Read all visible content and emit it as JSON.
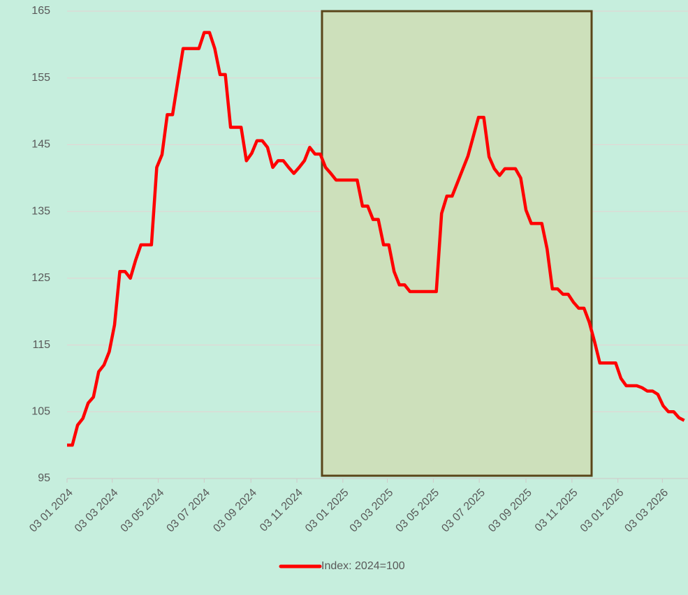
{
  "chart_data": {
    "type": "line",
    "x": [
      "2024-01-03",
      "2024-01-10",
      "2024-01-17",
      "2024-01-24",
      "2024-01-31",
      "2024-02-07",
      "2024-02-14",
      "2024-02-21",
      "2024-02-28",
      "2024-03-06",
      "2024-03-13",
      "2024-03-20",
      "2024-03-27",
      "2024-04-03",
      "2024-04-10",
      "2024-04-17",
      "2024-04-24",
      "2024-05-01",
      "2024-05-08",
      "2024-05-15",
      "2024-05-22",
      "2024-05-29",
      "2024-06-05",
      "2024-06-12",
      "2024-06-19",
      "2024-06-26",
      "2024-07-03",
      "2024-07-10",
      "2024-07-17",
      "2024-07-24",
      "2024-07-31",
      "2024-08-07",
      "2024-08-14",
      "2024-08-21",
      "2024-08-28",
      "2024-09-04",
      "2024-09-11",
      "2024-09-18",
      "2024-09-25",
      "2024-10-02",
      "2024-10-09",
      "2024-10-16",
      "2024-10-23",
      "2024-10-30",
      "2024-11-06",
      "2024-11-13",
      "2024-11-20",
      "2024-11-27",
      "2024-12-04",
      "2024-12-11",
      "2024-12-18",
      "2024-12-25",
      "2025-01-01",
      "2025-01-08",
      "2025-01-15",
      "2025-01-22",
      "2025-01-29",
      "2025-02-05",
      "2025-02-12",
      "2025-02-19",
      "2025-02-26",
      "2025-03-05",
      "2025-03-12",
      "2025-03-19",
      "2025-03-26",
      "2025-04-02",
      "2025-04-09",
      "2025-04-16",
      "2025-04-23",
      "2025-04-30",
      "2025-05-07",
      "2025-05-14",
      "2025-05-21",
      "2025-05-28",
      "2025-06-04",
      "2025-06-11",
      "2025-06-18",
      "2025-06-25",
      "2025-07-02",
      "2025-07-09",
      "2025-07-16",
      "2025-07-23",
      "2025-07-30",
      "2025-08-06",
      "2025-08-13",
      "2025-08-20",
      "2025-08-27",
      "2025-09-03",
      "2025-09-10",
      "2025-09-17",
      "2025-09-24",
      "2025-10-01",
      "2025-10-08",
      "2025-10-15",
      "2025-10-22",
      "2025-10-29",
      "2025-11-05",
      "2025-11-12",
      "2025-11-19",
      "2025-11-26",
      "2025-12-03",
      "2025-12-10",
      "2025-12-17",
      "2025-12-24",
      "2025-12-31",
      "2026-01-07",
      "2026-01-14",
      "2026-01-21",
      "2026-01-28",
      "2026-02-04",
      "2026-02-11",
      "2026-02-18",
      "2026-02-25",
      "2026-03-04",
      "2026-03-11",
      "2026-03-18",
      "2026-03-25",
      "2026-04-01"
    ],
    "series": [
      {
        "name": "Index: 2024=100",
        "color": "#ff0000",
        "values": [
          100,
          100,
          103,
          104,
          106.3,
          107.2,
          111,
          112,
          114,
          118,
          126,
          126,
          125,
          127.7,
          130,
          130,
          130,
          141.6,
          143.5,
          149.5,
          149.5,
          154.5,
          159.4,
          159.4,
          159.4,
          159.4,
          161.8,
          161.8,
          159.4,
          155.5,
          155.5,
          147.6,
          147.6,
          147.6,
          142.6,
          143.7,
          145.6,
          145.6,
          144.6,
          141.6,
          142.6,
          142.6,
          141.6,
          140.7,
          141.6,
          142.6,
          144.6,
          143.6,
          143.6,
          141.6,
          140.7,
          139.7,
          139.7,
          139.7,
          139.7,
          139.7,
          135.8,
          135.8,
          133.8,
          133.8,
          130,
          130,
          126,
          124,
          124,
          123,
          123,
          123,
          123,
          123,
          123,
          134.7,
          137.3,
          137.3,
          139.3,
          141.3,
          143.3,
          146.2,
          149.1,
          149.1,
          143.2,
          141.4,
          140.4,
          141.4,
          141.4,
          141.4,
          140,
          135.2,
          133.2,
          133.2,
          133.2,
          129.4,
          123.4,
          123.4,
          122.6,
          122.6,
          121.4,
          120.5,
          120.5,
          118.4,
          115.5,
          112.3,
          112.3,
          112.3,
          112.3,
          110,
          108.9,
          108.9,
          108.9,
          108.6,
          108.1,
          108.1,
          107.6,
          105.9,
          105,
          105,
          104.1,
          103.7
        ]
      }
    ],
    "xlim": [
      "2024-01-03",
      "2026-04-06"
    ],
    "xticks": [
      {
        "value": "2024-01-03",
        "label": "03 01 2024"
      },
      {
        "value": "2024-03-03",
        "label": "03 03 2024"
      },
      {
        "value": "2024-05-03",
        "label": "03 05 2024"
      },
      {
        "value": "2024-07-03",
        "label": "03 07 2024"
      },
      {
        "value": "2024-09-03",
        "label": "03 09 2024"
      },
      {
        "value": "2024-11-03",
        "label": "03 11 2024"
      },
      {
        "value": "2025-01-03",
        "label": "03 01 2025"
      },
      {
        "value": "2025-03-03",
        "label": "03 03 2025"
      },
      {
        "value": "2025-05-03",
        "label": "03 05 2025"
      },
      {
        "value": "2025-07-03",
        "label": "03 07 2025"
      },
      {
        "value": "2025-09-03",
        "label": "03 09 2025"
      },
      {
        "value": "2025-11-03",
        "label": "03 11 2025"
      },
      {
        "value": "2026-01-03",
        "label": "03 01 2026"
      },
      {
        "value": "2026-03-03",
        "label": "03 03 2026"
      }
    ],
    "ylim": [
      95,
      165
    ],
    "yticks": [
      95,
      105,
      115,
      125,
      135,
      145,
      155,
      165
    ],
    "grid": true,
    "legend": "bottom"
  }
}
